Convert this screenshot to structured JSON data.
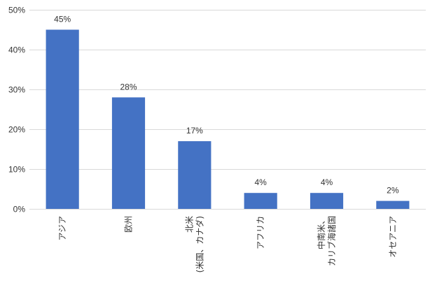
{
  "chart_data": {
    "type": "bar",
    "categories": [
      [
        "アジア"
      ],
      [
        "欧州"
      ],
      [
        "北米",
        "(米国、カナダ)"
      ],
      [
        "アフリカ"
      ],
      [
        "中南米、",
        "カリブ海諸国"
      ],
      [
        "オセアニア"
      ]
    ],
    "values": [
      45,
      28,
      17,
      4,
      4,
      2
    ],
    "data_labels": [
      "45%",
      "28%",
      "17%",
      "4%",
      "4%",
      "2%"
    ],
    "ylim": [
      0,
      50
    ],
    "yticks": [
      0,
      10,
      20,
      30,
      40,
      50
    ],
    "ytick_labels": [
      "0%",
      "10%",
      "20%",
      "30%",
      "40%",
      "50%"
    ],
    "grid": true,
    "bar_color": "#4472C4",
    "grid_color": "#D9D9D9"
  }
}
